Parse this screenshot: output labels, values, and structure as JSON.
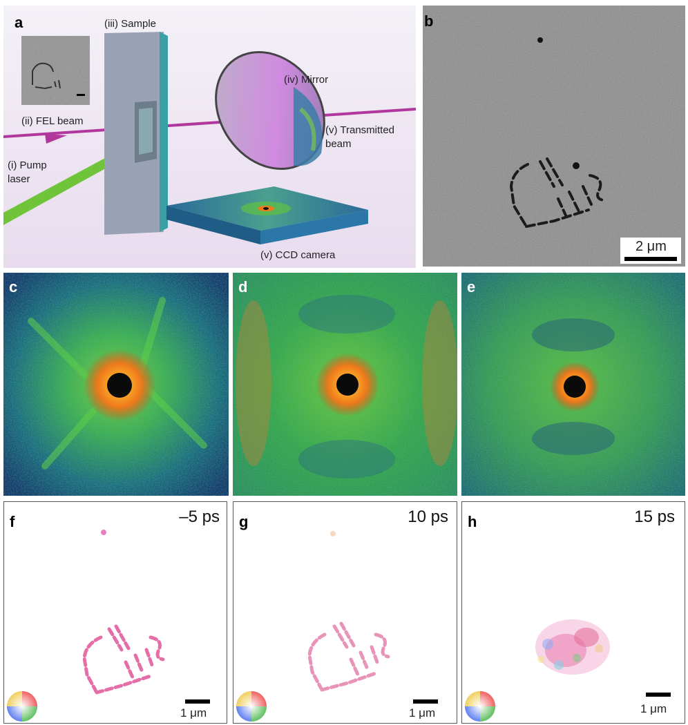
{
  "figure": {
    "panel_a": {
      "label": "a",
      "labels": {
        "pump": "(i) Pump laser",
        "fel": "(ii) FEL beam",
        "sample": "(iii) Sample",
        "mirror": "(iv) Mirror",
        "transmitted": "(v) Transmitted beam",
        "ccd": "(v) CCD camera"
      }
    },
    "panel_b": {
      "label": "b",
      "scale_bar": "2 μm"
    },
    "panel_c": {
      "label": "c"
    },
    "panel_d": {
      "label": "d"
    },
    "panel_e": {
      "label": "e"
    },
    "panel_f": {
      "label": "f",
      "time": "–5 ps",
      "scale_bar": "1 μm"
    },
    "panel_g": {
      "label": "g",
      "time": "10 ps",
      "scale_bar": "1 μm"
    },
    "panel_h": {
      "label": "h",
      "time": "15 ps",
      "scale_bar": "1 μm"
    }
  }
}
